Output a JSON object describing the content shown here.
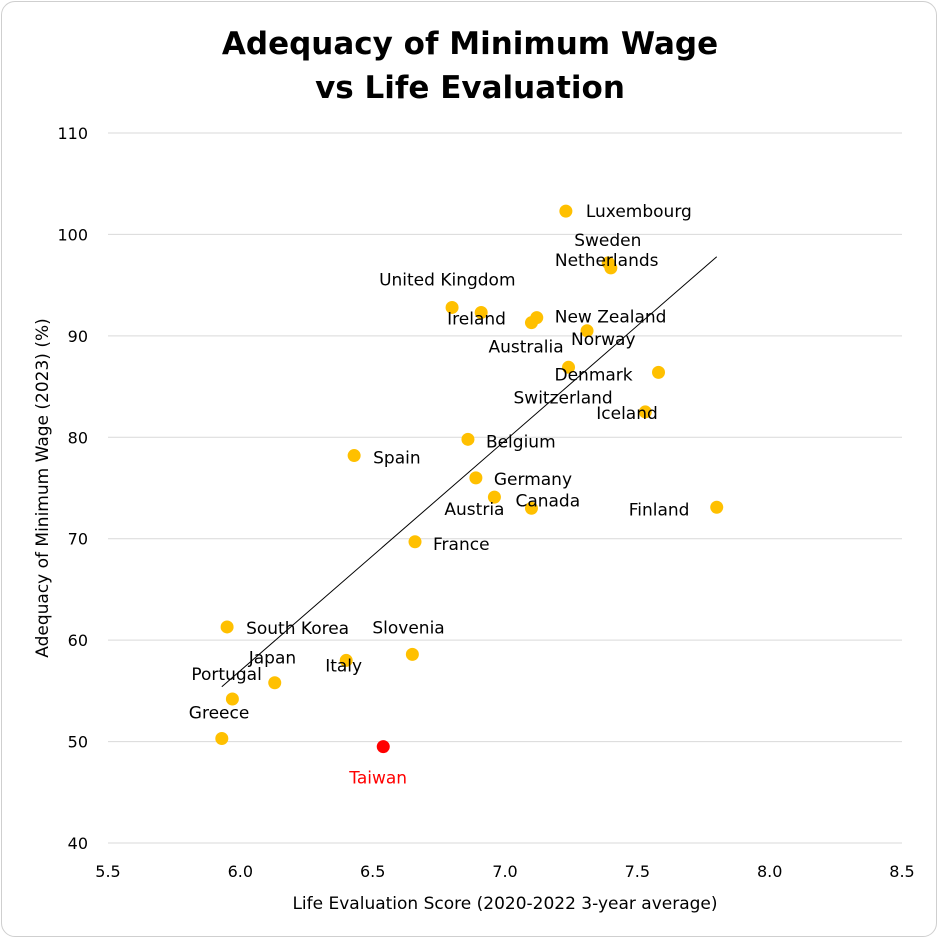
{
  "chart_data": {
    "type": "scatter",
    "title_lines": [
      "Adequacy of Minimum Wage",
      "vs Life Evaluation"
    ],
    "xlabel": "Life Evaluation Score (2020-2022 3-year average)",
    "ylabel": "Adequacy of Minimum Wage (2023) (%)",
    "xlim": [
      5.5,
      8.5
    ],
    "ylim": [
      40,
      110
    ],
    "x_ticks": [
      "5.5",
      "6.0",
      "6.5",
      "7.0",
      "7.5",
      "8.0",
      "8.5"
    ],
    "y_ticks": [
      "40",
      "50",
      "60",
      "70",
      "80",
      "90",
      "100",
      "110"
    ],
    "grid": "horizontal",
    "point_color": "#FFC000",
    "highlight_color": "#FF0000",
    "trendline": {
      "x1": 5.93,
      "y1": 55.4,
      "x2": 7.8,
      "y2": 97.8
    },
    "points": [
      {
        "label": "Luxembourg",
        "x": 7.23,
        "y": 102.3
      },
      {
        "label": "Sweden",
        "x": 7.39,
        "y": 97.2
      },
      {
        "label": "Netherlands",
        "x": 7.4,
        "y": 96.7
      },
      {
        "label": "United Kingdom",
        "x": 6.8,
        "y": 92.8
      },
      {
        "label": "Ireland",
        "x": 6.91,
        "y": 92.3
      },
      {
        "label": "New Zealand",
        "x": 7.12,
        "y": 91.8
      },
      {
        "label": "Australia",
        "x": 7.1,
        "y": 91.3
      },
      {
        "label": "Norway",
        "x": 7.31,
        "y": 90.5
      },
      {
        "label": "Denmark",
        "x": 7.58,
        "y": 86.4
      },
      {
        "label": "Switzerland",
        "x": 7.24,
        "y": 86.9
      },
      {
        "label": "Iceland",
        "x": 7.53,
        "y": 82.5
      },
      {
        "label": "Belgium",
        "x": 6.86,
        "y": 79.8
      },
      {
        "label": "Spain",
        "x": 6.43,
        "y": 78.2
      },
      {
        "label": "Germany",
        "x": 6.89,
        "y": 76.0
      },
      {
        "label": "Austria",
        "x": 6.96,
        "y": 74.1
      },
      {
        "label": "Canada",
        "x": 7.1,
        "y": 73.0
      },
      {
        "label": "Finland",
        "x": 7.8,
        "y": 73.1
      },
      {
        "label": "France",
        "x": 6.66,
        "y": 69.7
      },
      {
        "label": "South Korea",
        "x": 5.95,
        "y": 61.3
      },
      {
        "label": "Slovenia",
        "x": 6.65,
        "y": 58.6
      },
      {
        "label": "Italy",
        "x": 6.4,
        "y": 58.0
      },
      {
        "label": "Japan",
        "x": 6.13,
        "y": 55.8
      },
      {
        "label": "Portugal",
        "x": 5.97,
        "y": 54.2
      },
      {
        "label": "Greece",
        "x": 5.93,
        "y": 50.3
      },
      {
        "label": "Taiwan",
        "x": 6.54,
        "y": 49.5,
        "highlight": true
      }
    ]
  }
}
